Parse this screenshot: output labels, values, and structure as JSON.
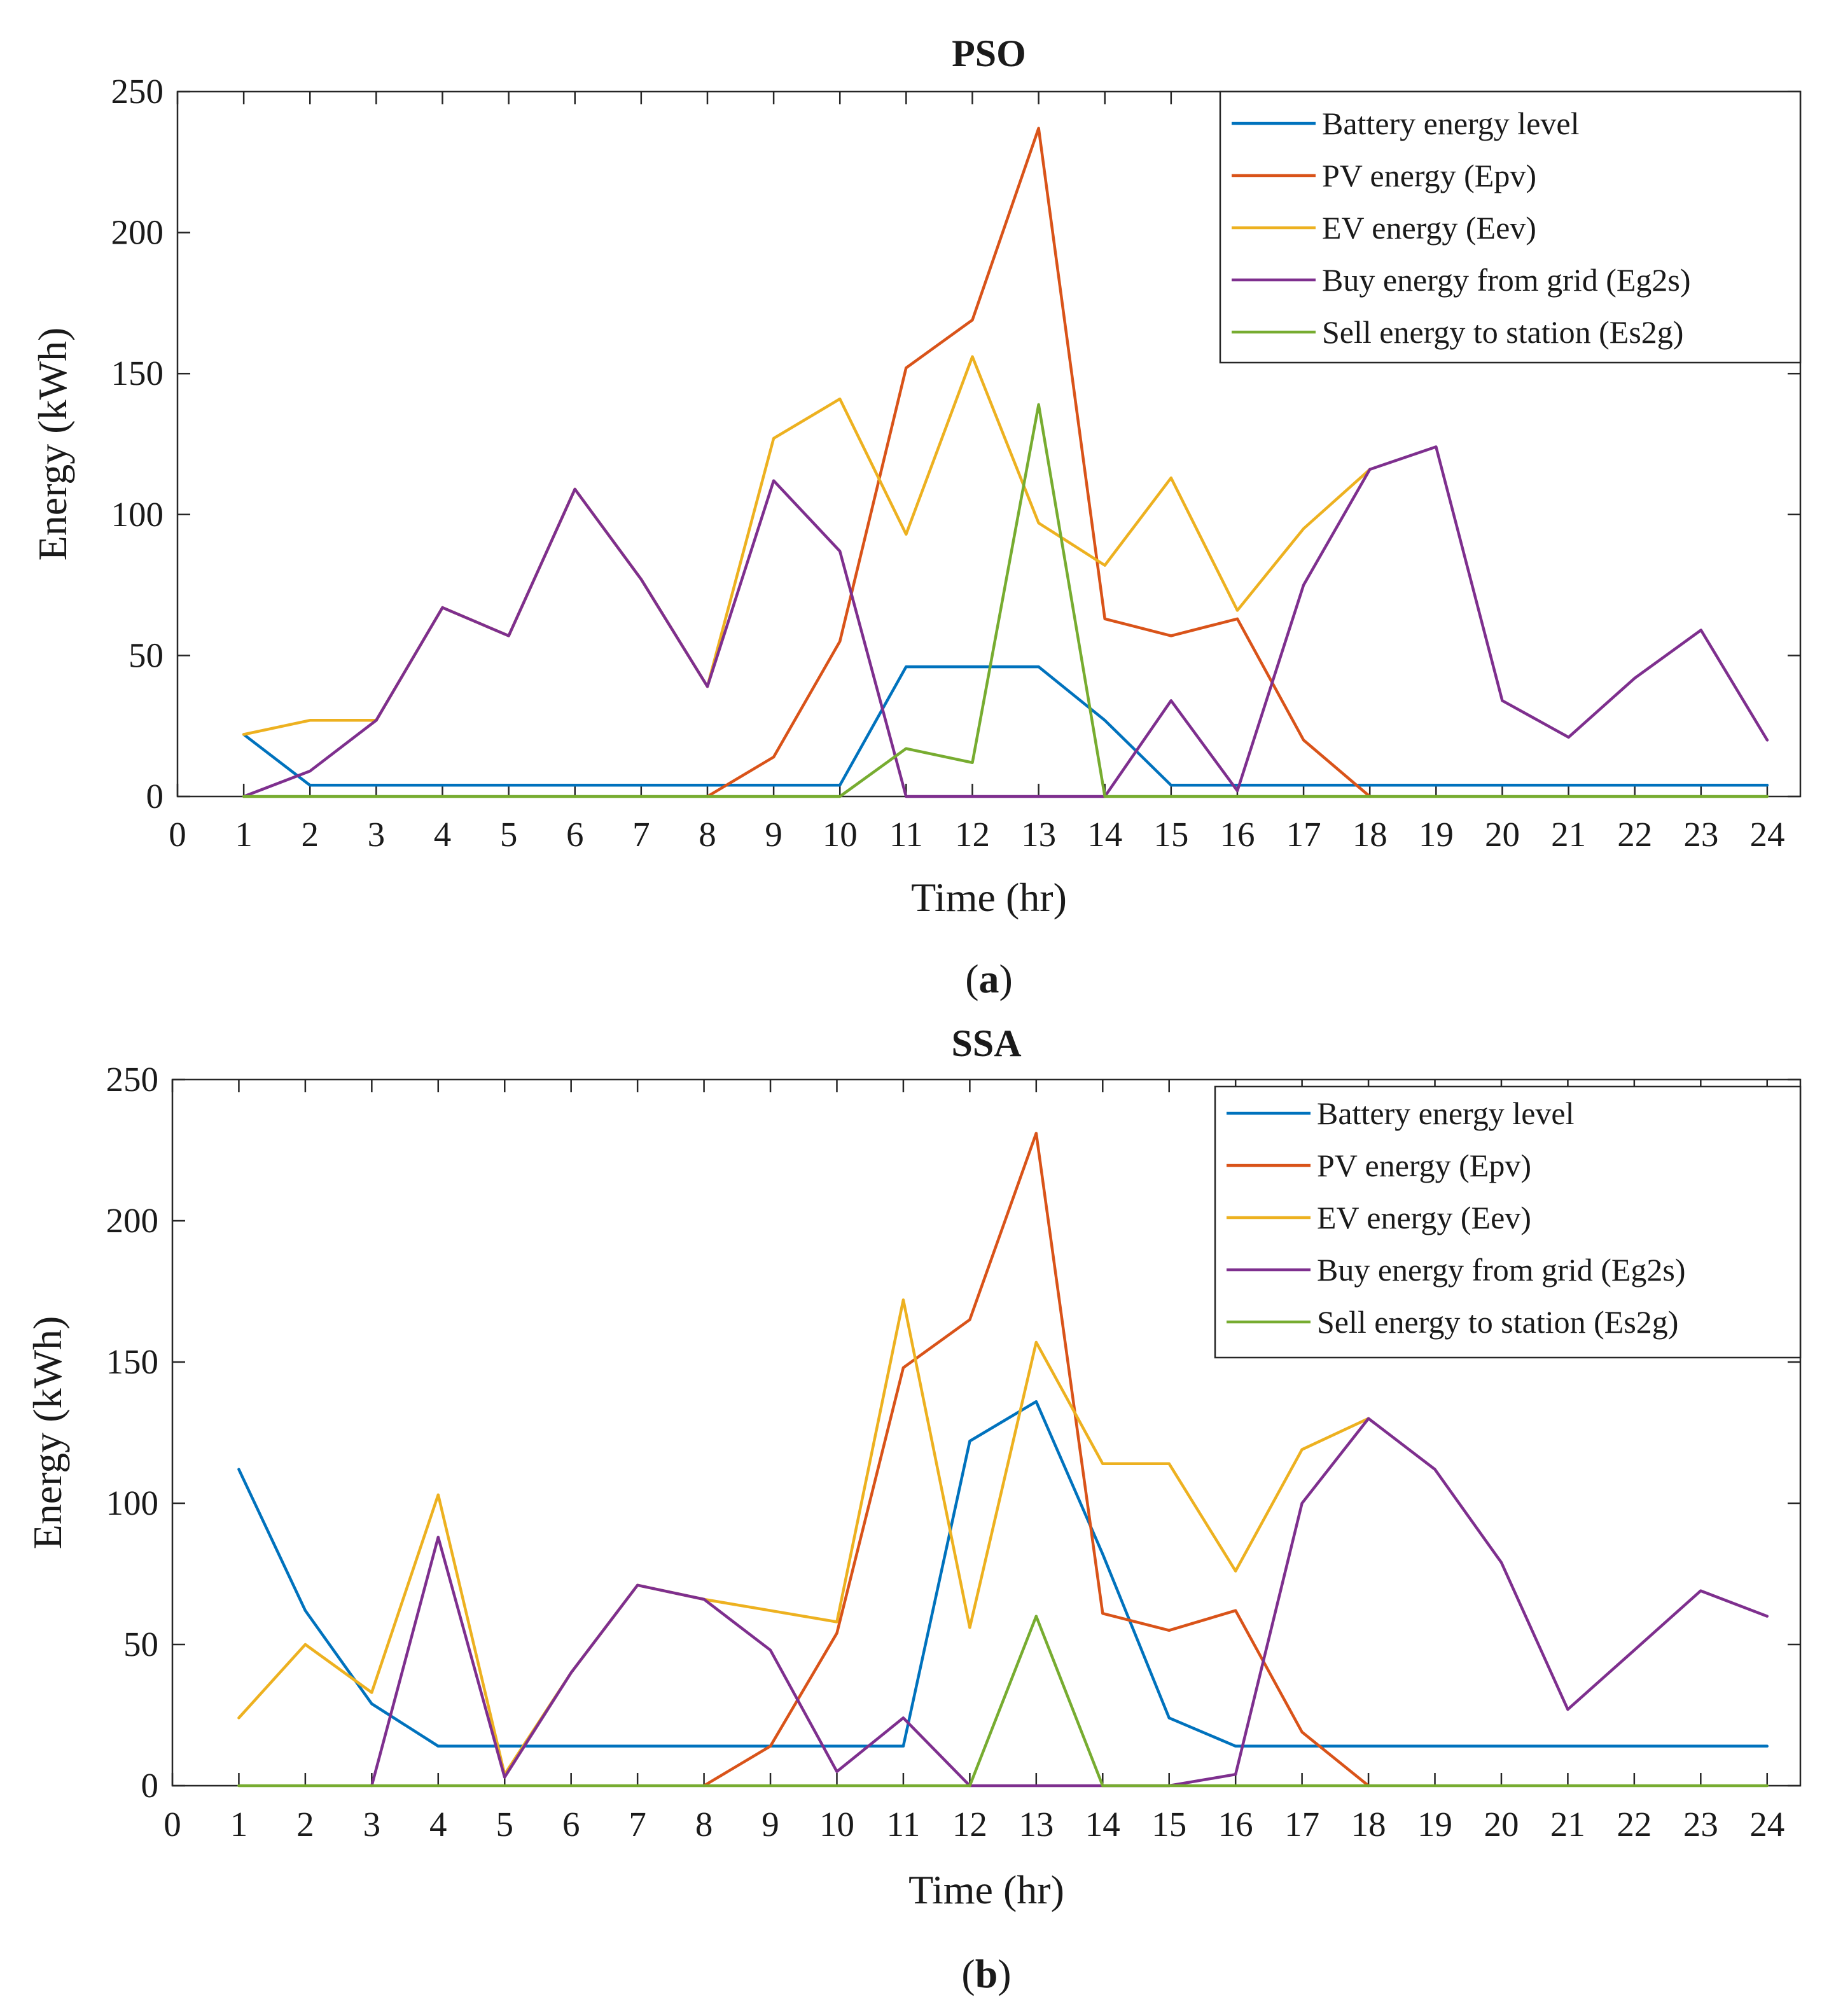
{
  "chart_data": [
    {
      "panel": "a",
      "type": "line",
      "title": "PSO",
      "xlabel": "Time (hr)",
      "ylabel": "Energy (kWh)",
      "xlim": [
        0,
        24.5
      ],
      "ylim": [
        0,
        250
      ],
      "xticks": [
        0,
        1,
        2,
        3,
        4,
        5,
        6,
        7,
        8,
        9,
        10,
        11,
        12,
        13,
        14,
        15,
        16,
        17,
        18,
        19,
        20,
        21,
        22,
        23,
        24
      ],
      "yticks": [
        0,
        50,
        100,
        150,
        200,
        250
      ],
      "legend_position": "top-right",
      "caption_letter": "a",
      "series": [
        {
          "name": "Battery energy level",
          "color": "#0072BD",
          "x": [
            1,
            2,
            3,
            4,
            5,
            6,
            7,
            8,
            9,
            10,
            11,
            12,
            13,
            14,
            15,
            16,
            17,
            18,
            19,
            20,
            21,
            22,
            23,
            24
          ],
          "values": [
            22,
            4,
            4,
            4,
            4,
            4,
            4,
            4,
            4,
            4,
            46,
            46,
            46,
            27,
            4,
            4,
            4,
            4,
            4,
            4,
            4,
            4,
            4,
            4
          ]
        },
        {
          "name": "PV energy (Epv)",
          "color": "#D95319",
          "x": [
            8,
            9,
            10,
            11,
            12,
            13,
            14,
            15,
            16,
            17,
            18
          ],
          "values": [
            0,
            14,
            55,
            152,
            169,
            237,
            63,
            57,
            63,
            20,
            0
          ]
        },
        {
          "name": "EV energy (Eev)",
          "color": "#EDB120",
          "x": [
            1,
            2,
            3,
            4,
            5,
            6,
            7,
            8,
            9,
            10,
            11,
            12,
            13,
            14,
            15,
            16,
            17,
            18
          ],
          "values": [
            22,
            27,
            27,
            67,
            57,
            109,
            77,
            39,
            127,
            141,
            93,
            156,
            97,
            82,
            113,
            66,
            95,
            116
          ]
        },
        {
          "name": "Buy energy from grid (Eg2s)",
          "color": "#7E2F8E",
          "x": [
            1,
            2,
            3,
            4,
            5,
            6,
            7,
            8,
            9,
            10,
            11,
            12,
            13,
            14,
            15,
            16,
            17,
            18,
            19,
            20,
            21,
            22,
            23,
            24
          ],
          "values": [
            0,
            9,
            27,
            67,
            57,
            109,
            77,
            39,
            112,
            87,
            0,
            0,
            0,
            0,
            34,
            2,
            75,
            116,
            124,
            34,
            21,
            42,
            59,
            20
          ]
        },
        {
          "name": "Sell energy to station (Es2g)",
          "color": "#77AC30",
          "x": [
            1,
            2,
            3,
            4,
            5,
            6,
            7,
            8,
            9,
            10,
            11,
            12,
            13,
            14,
            15,
            16,
            17,
            18,
            19,
            20,
            21,
            22,
            23,
            24
          ],
          "values": [
            0,
            0,
            0,
            0,
            0,
            0,
            0,
            0,
            0,
            0,
            17,
            12,
            139,
            0,
            0,
            0,
            0,
            0,
            0,
            0,
            0,
            0,
            0,
            0
          ]
        }
      ]
    },
    {
      "panel": "b",
      "type": "line",
      "title": "SSA",
      "xlabel": "Time (hr)",
      "ylabel": "Energy (kWh)",
      "xlim": [
        0,
        24.5
      ],
      "ylim": [
        0,
        250
      ],
      "xticks": [
        0,
        1,
        2,
        3,
        4,
        5,
        6,
        7,
        8,
        9,
        10,
        11,
        12,
        13,
        14,
        15,
        16,
        17,
        18,
        19,
        20,
        21,
        22,
        23,
        24
      ],
      "yticks": [
        0,
        50,
        100,
        150,
        200,
        250
      ],
      "legend_position": "top-right",
      "caption_letter": "b",
      "series": [
        {
          "name": "Battery energy level",
          "color": "#0072BD",
          "x": [
            1,
            2,
            3,
            4,
            5,
            6,
            7,
            8,
            9,
            10,
            11,
            12,
            13,
            14,
            15,
            16,
            17,
            18,
            19,
            20,
            21,
            22,
            23,
            24
          ],
          "values": [
            112,
            62,
            29,
            14,
            14,
            14,
            14,
            14,
            14,
            14,
            14,
            122,
            136,
            82,
            24,
            14,
            14,
            14,
            14,
            14,
            14,
            14,
            14,
            14
          ]
        },
        {
          "name": "PV energy (Epv)",
          "color": "#D95319",
          "x": [
            8,
            9,
            10,
            11,
            12,
            13,
            14,
            15,
            16,
            17,
            18
          ],
          "values": [
            0,
            14,
            54,
            148,
            165,
            231,
            61,
            55,
            62,
            19,
            0
          ]
        },
        {
          "name": "EV energy (Eev)",
          "color": "#EDB120",
          "x": [
            1,
            2,
            3,
            4,
            5,
            6,
            7,
            8,
            9,
            10,
            11,
            12,
            13,
            14,
            15,
            16,
            17,
            18
          ],
          "values": [
            24,
            50,
            33,
            103,
            4,
            40,
            71,
            66,
            62,
            58,
            172,
            56,
            157,
            114,
            114,
            76,
            119,
            130
          ]
        },
        {
          "name": "Buy energy from grid (Eg2s)",
          "color": "#7E2F8E",
          "x": [
            3,
            4,
            5,
            6,
            7,
            8,
            9,
            10,
            11,
            12,
            13,
            14,
            15,
            16,
            17,
            18,
            19,
            20,
            21,
            22,
            23,
            24
          ],
          "values": [
            0,
            88,
            3,
            40,
            71,
            66,
            48,
            5,
            24,
            0,
            0,
            0,
            0,
            4,
            100,
            130,
            112,
            79,
            27,
            48,
            69,
            60
          ]
        },
        {
          "name": "Sell energy to station (Es2g)",
          "color": "#77AC30",
          "x": [
            1,
            2,
            3,
            4,
            5,
            6,
            7,
            8,
            9,
            10,
            11,
            12,
            13,
            14,
            15,
            16,
            17,
            18,
            19,
            20,
            21,
            22,
            23,
            24
          ],
          "values": [
            0,
            0,
            0,
            0,
            0,
            0,
            0,
            0,
            0,
            0,
            0,
            0,
            60,
            0,
            0,
            0,
            0,
            0,
            0,
            0,
            0,
            0,
            0,
            0
          ]
        }
      ]
    }
  ]
}
